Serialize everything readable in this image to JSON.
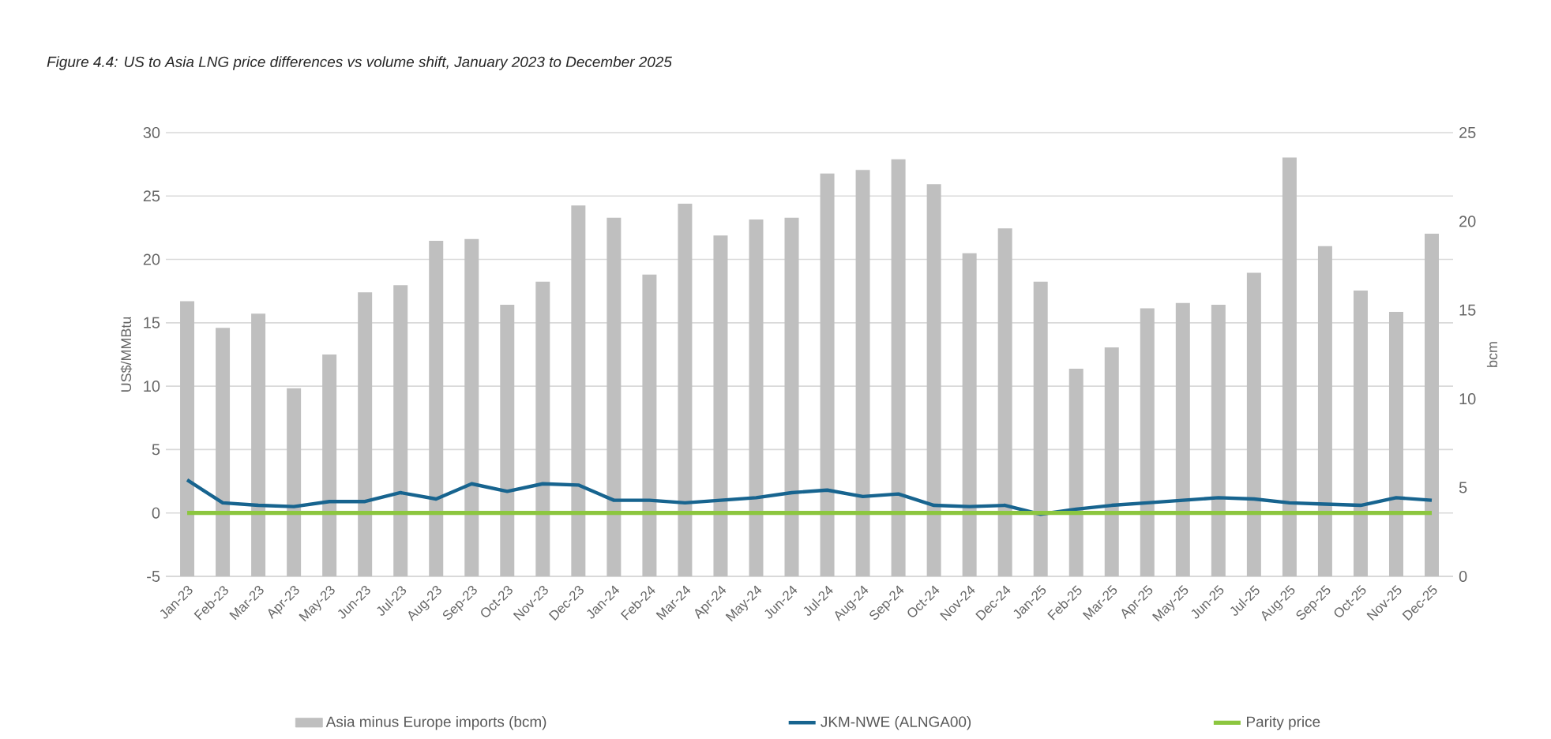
{
  "chart_data": {
    "type": "bar",
    "title": "Figure 4.4: US to Asia LNG price differences vs volume shift, January 2023 to December 2025",
    "categories": [
      "Jan-23",
      "Feb-23",
      "Mar-23",
      "Apr-23",
      "May-23",
      "Jun-23",
      "Jul-23",
      "Aug-23",
      "Sep-23",
      "Oct-23",
      "Nov-23",
      "Dec-23",
      "Jan-24",
      "Feb-24",
      "Mar-24",
      "Apr-24",
      "May-24",
      "Jun-24",
      "Jul-24",
      "Aug-24",
      "Sep-24",
      "Oct-24",
      "Nov-24",
      "Dec-24",
      "Jan-25",
      "Feb-25",
      "Mar-25",
      "Apr-25",
      "May-25",
      "Jun-25",
      "Jul-25",
      "Aug-25",
      "Sep-25",
      "Oct-25",
      "Nov-25",
      "Dec-25"
    ],
    "series": [
      {
        "name": "Asia minus Europe imports (bcm)",
        "axis": "y2",
        "color": "#bfbfbf",
        "values": [
          15.5,
          14.0,
          14.8,
          10.6,
          12.5,
          16.0,
          16.4,
          18.9,
          19.0,
          15.3,
          16.6,
          20.9,
          20.2,
          17.0,
          21.0,
          19.2,
          20.1,
          20.2,
          22.7,
          22.9,
          23.5,
          22.1,
          18.2,
          19.6,
          16.6,
          11.7,
          12.9,
          15.1,
          15.4,
          15.3,
          17.1,
          23.6,
          18.6,
          16.1,
          14.9,
          19.3
        ]
      },
      {
        "name": "JKM-NWE (ALNGA00)",
        "type": "line",
        "color": "#17648f",
        "values": [
          2.6,
          0.8,
          0.6,
          0.5,
          0.9,
          0.9,
          1.6,
          1.1,
          2.3,
          1.7,
          2.3,
          2.2,
          1.0,
          1.0,
          0.8,
          1.0,
          1.2,
          1.6,
          1.8,
          1.3,
          1.5,
          0.6,
          0.5,
          0.6,
          -0.1,
          0.3,
          0.6,
          0.8,
          1.0,
          1.2,
          1.1,
          0.8,
          0.7,
          0.6,
          1.2,
          1.0
        ]
      },
      {
        "name": "Parity price",
        "type": "line",
        "color": "#8cc63f",
        "values": [
          0,
          0,
          0,
          0,
          0,
          0,
          0,
          0,
          0,
          0,
          0,
          0,
          0,
          0,
          0,
          0,
          0,
          0,
          0,
          0,
          0,
          0,
          0,
          0,
          0,
          0,
          0,
          0,
          0,
          0,
          0,
          0,
          0,
          0,
          0,
          0
        ]
      }
    ],
    "ylabel": "US$/MMBtu",
    "y2label": "bcm",
    "ylim": [
      -5,
      30
    ],
    "yticks": [
      -5,
      0,
      5,
      10,
      15,
      20,
      25,
      30
    ],
    "y2lim": [
      0,
      25
    ],
    "y2ticks": [
      0,
      5,
      10,
      15,
      20,
      25
    ],
    "grid": "y",
    "legend": "bottom",
    "marker": "none",
    "line_style": "solid"
  }
}
